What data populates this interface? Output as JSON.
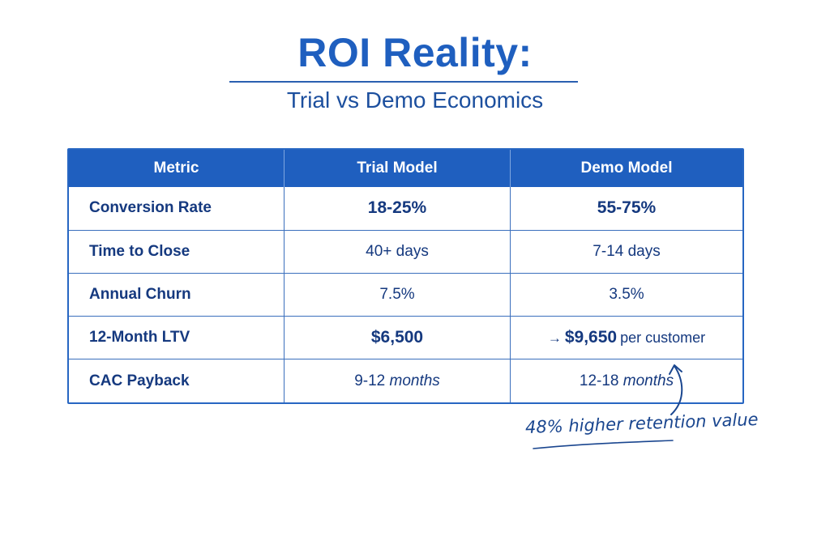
{
  "title": "ROI Reality:",
  "subtitle": "Trial vs Demo Economics",
  "table": {
    "headers": [
      "Metric",
      "Trial Model",
      "Demo Model"
    ],
    "rows": [
      {
        "metric": "Conversion Rate",
        "trial": "18-25%",
        "demo": "55-75%"
      },
      {
        "metric": "Time to Close",
        "trial": "40+ days",
        "demo": "7-14 days"
      },
      {
        "metric": "Annual Churn",
        "trial": "7.5%",
        "demo": "3.5%"
      },
      {
        "metric": "12-Month LTV",
        "trial": "$6,500",
        "demo": "$9,650",
        "demo_suffix": "per customer"
      },
      {
        "metric": "CAC Payback",
        "trial_num": "9-12",
        "trial_unit": "months",
        "demo_num": "12-18",
        "demo_unit": "months"
      }
    ]
  },
  "annotation": {
    "text": "48% higher retention value"
  },
  "colors": {
    "accent": "#1f5fbf",
    "text": "#15397f"
  },
  "icons": {
    "ltv_arrow": "right-arrow-icon",
    "callout_arrow": "curved-up-arrow-icon"
  }
}
